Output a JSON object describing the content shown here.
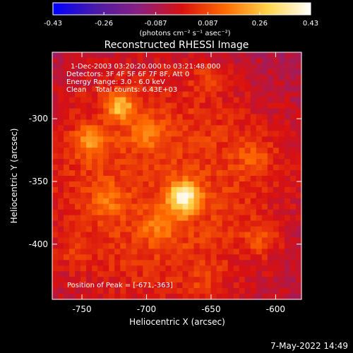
{
  "chart_data": {
    "type": "heatmap",
    "title": "Reconstructed RHESSI Image",
    "colorbar": {
      "ticks": [
        "-0.43",
        "-0.26",
        "-0.087",
        "0.087",
        "0.26",
        "0.43"
      ],
      "tick_values": [
        -0.43,
        -0.26,
        -0.087,
        0.087,
        0.26,
        0.43
      ],
      "range": [
        -0.43,
        0.43
      ],
      "unit_label": "(photons cm⁻² s⁻¹ asec⁻²)",
      "colormap": [
        "#0000ff",
        "#4b1aa8",
        "#8a2080",
        "#d81010",
        "#ff6a00",
        "#ffd44a",
        "#ffffff"
      ]
    },
    "annotations": {
      "time": "1-Dec-2003 03:20:20.000 to 03:21:48.000",
      "detectors": "Detectors: 3F 4F 5F 6F 7F 8F, Att 0",
      "energy": "Energy Range: 3.0 - 6.0 keV",
      "clean": "Clean    Total counts: 6.43E+03",
      "peak": "Position of Peak = [-671,-363]"
    },
    "xlabel": "Heliocentric X (arcsec)",
    "ylabel": "Heliocentric Y (arcsec)",
    "xlim": [
      -773,
      -580
    ],
    "ylim": [
      -444,
      -247
    ],
    "xticks": [
      -750,
      -700,
      -650,
      -600
    ],
    "yticks": [
      -300,
      -350,
      -400
    ],
    "xtick_labels": [
      "-750",
      "-700",
      "-650",
      "-600"
    ],
    "ytick_labels": [
      "-300",
      "-350",
      "-400"
    ],
    "peak": {
      "x": -671,
      "y": -363,
      "value": 0.43
    },
    "sources": [
      {
        "x": -671,
        "y": -363,
        "amp": 0.34,
        "sigma": 9
      },
      {
        "x": -721,
        "y": -290,
        "amp": 0.24,
        "sigma": 8
      },
      {
        "x": -744,
        "y": -318,
        "amp": 0.16,
        "sigma": 9
      },
      {
        "x": -700,
        "y": -312,
        "amp": 0.12,
        "sigma": 9
      },
      {
        "x": -690,
        "y": -385,
        "amp": 0.12,
        "sigma": 10
      },
      {
        "x": -730,
        "y": -365,
        "amp": 0.1,
        "sigma": 9
      },
      {
        "x": -615,
        "y": -330,
        "amp": 0.09,
        "sigma": 11
      },
      {
        "x": -612,
        "y": -395,
        "amp": 0.08,
        "sigma": 10
      },
      {
        "x": -652,
        "y": -268,
        "amp": 0.08,
        "sigma": 9
      },
      {
        "x": -755,
        "y": -405,
        "amp": 0.06,
        "sigma": 9
      },
      {
        "x": -655,
        "y": -430,
        "amp": 0.06,
        "sigma": 11
      }
    ]
  },
  "footer": {
    "timestamp": "7-May-2022 14:49"
  }
}
